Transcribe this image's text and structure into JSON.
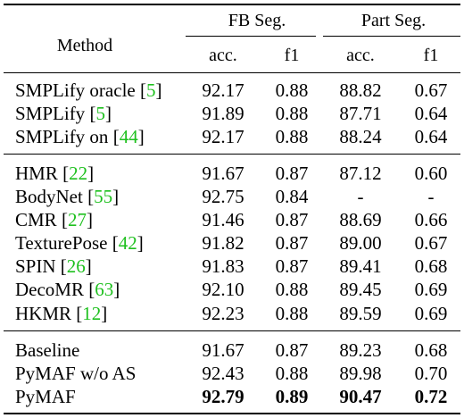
{
  "header": {
    "method": "Method",
    "group1": "FB Seg.",
    "group2": "Part Seg.",
    "sub": [
      "acc.",
      "f1",
      "acc.",
      "f1"
    ]
  },
  "rows": [
    {
      "name": "SMPLify oracle ",
      "cite": "5",
      "vals": [
        "92.17",
        "0.88",
        "88.82",
        "0.67"
      ],
      "bold": [
        false,
        false,
        false,
        false
      ]
    },
    {
      "name": "SMPLify ",
      "cite": "5",
      "vals": [
        "91.89",
        "0.88",
        "87.71",
        "0.64"
      ],
      "bold": [
        false,
        false,
        false,
        false
      ]
    },
    {
      "name": "SMPLify on ",
      "cite": "44",
      "vals": [
        "92.17",
        "0.88",
        "88.24",
        "0.64"
      ],
      "bold": [
        false,
        false,
        false,
        false
      ]
    },
    {
      "name": "HMR ",
      "cite": "22",
      "vals": [
        "91.67",
        "0.87",
        "87.12",
        "0.60"
      ],
      "bold": [
        false,
        false,
        false,
        false
      ]
    },
    {
      "name": "BodyNet ",
      "cite": "55",
      "vals": [
        "92.75",
        "0.84",
        "-",
        "-"
      ],
      "bold": [
        false,
        false,
        false,
        false
      ]
    },
    {
      "name": "CMR ",
      "cite": "27",
      "vals": [
        "91.46",
        "0.87",
        "88.69",
        "0.66"
      ],
      "bold": [
        false,
        false,
        false,
        false
      ]
    },
    {
      "name": "TexturePose ",
      "cite": "42",
      "vals": [
        "91.82",
        "0.87",
        "89.00",
        "0.67"
      ],
      "bold": [
        false,
        false,
        false,
        false
      ]
    },
    {
      "name": "SPIN ",
      "cite": "26",
      "vals": [
        "91.83",
        "0.87",
        "89.41",
        "0.68"
      ],
      "bold": [
        false,
        false,
        false,
        false
      ]
    },
    {
      "name": "DecoMR ",
      "cite": "63",
      "vals": [
        "92.10",
        "0.88",
        "89.45",
        "0.69"
      ],
      "bold": [
        false,
        false,
        false,
        false
      ]
    },
    {
      "name": "HKMR ",
      "cite": "12",
      "vals": [
        "92.23",
        "0.88",
        "89.59",
        "0.69"
      ],
      "bold": [
        false,
        false,
        false,
        false
      ]
    },
    {
      "name": "Baseline",
      "cite": "",
      "vals": [
        "91.67",
        "0.87",
        "89.23",
        "0.68"
      ],
      "bold": [
        false,
        false,
        false,
        false
      ]
    },
    {
      "name": "PyMAF w/o AS",
      "cite": "",
      "vals": [
        "92.43",
        "0.88",
        "89.98",
        "0.70"
      ],
      "bold": [
        false,
        false,
        false,
        false
      ]
    },
    {
      "name": "PyMAF",
      "cite": "",
      "vals": [
        "92.79",
        "0.89",
        "90.47",
        "0.72"
      ],
      "bold": [
        true,
        true,
        true,
        true
      ]
    }
  ]
}
